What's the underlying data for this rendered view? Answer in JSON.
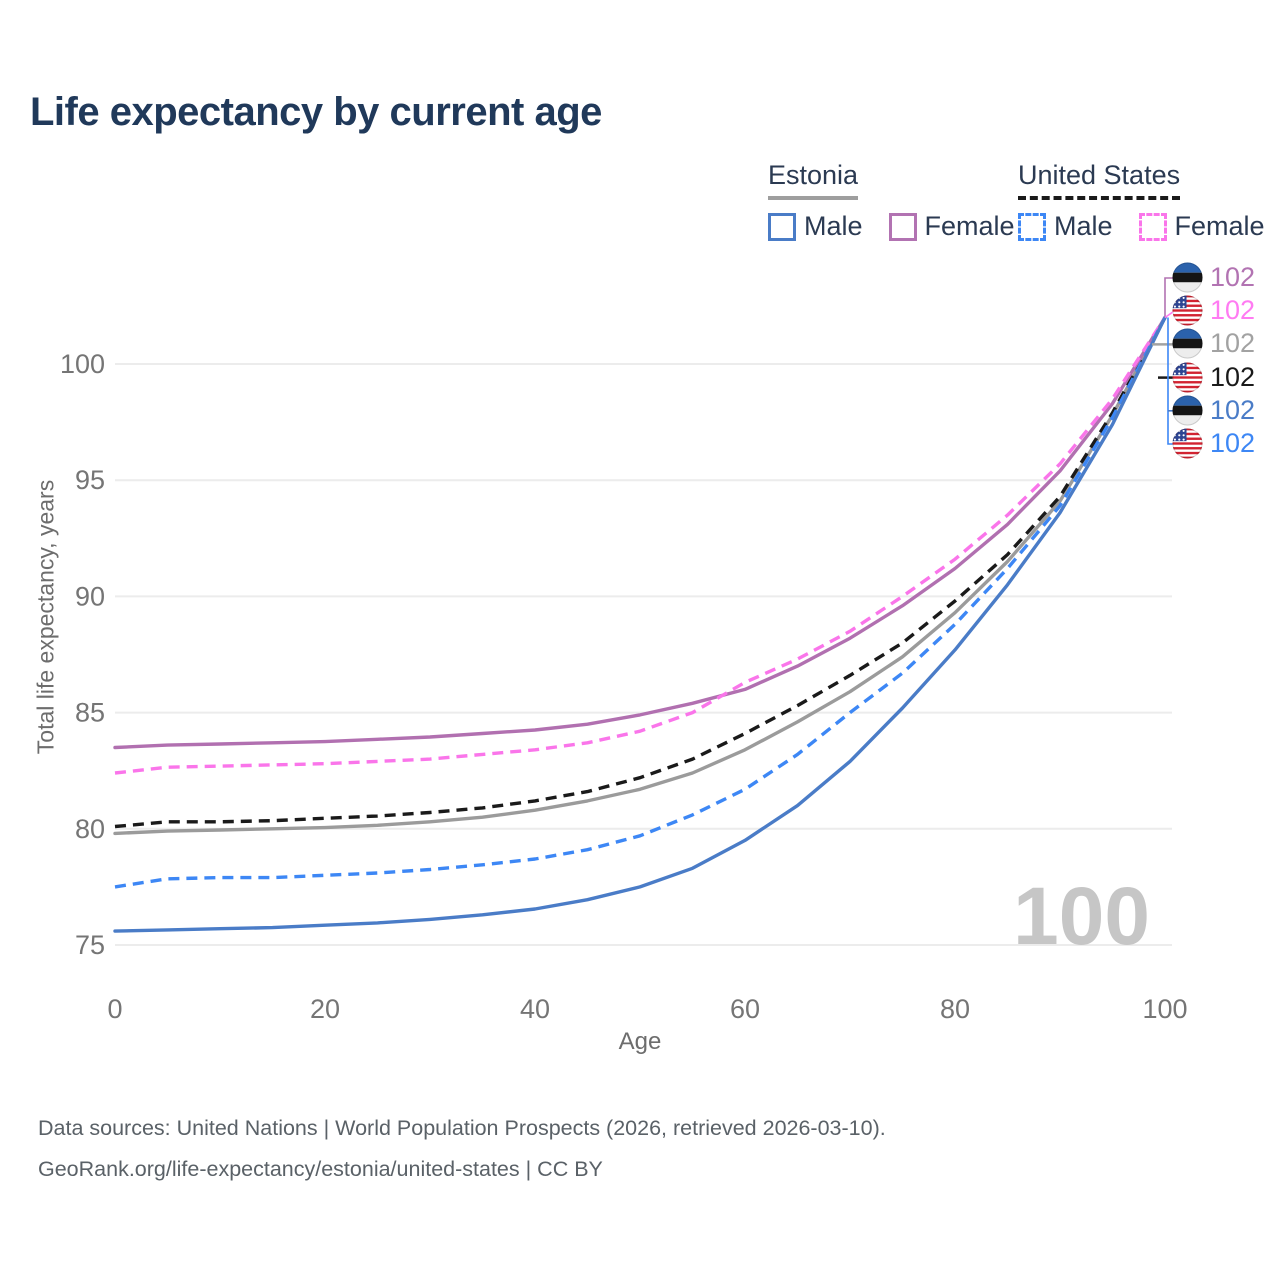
{
  "title": "Life expectancy by current age",
  "legend": {
    "groups": [
      {
        "name": "Estonia",
        "underline_style": "solid",
        "underline_color": "#9e9e9e",
        "items": [
          {
            "label": "Male",
            "color": "#4a7cc7",
            "dashed": false
          },
          {
            "label": "Female",
            "color": "#b273b2",
            "dashed": false
          }
        ]
      },
      {
        "name": "United States",
        "underline_style": "dashed",
        "underline_color": "#1a1a1a",
        "items": [
          {
            "label": "Male",
            "color": "#3d87f5",
            "dashed": true
          },
          {
            "label": "Female",
            "color": "#fa75ea",
            "dashed": true
          }
        ]
      }
    ]
  },
  "chart_data": {
    "type": "line",
    "title": "Life expectancy by current age",
    "xlabel": "Age",
    "ylabel": "Total life expectancy, years",
    "xlim": [
      0,
      100
    ],
    "ylim": [
      73.8,
      103.8
    ],
    "xticks": [
      0,
      20,
      40,
      60,
      80,
      100
    ],
    "yticks": [
      75,
      80,
      85,
      90,
      95,
      100
    ],
    "grid": "horizontal",
    "legend_position": "top-right",
    "x": [
      0,
      5,
      10,
      15,
      20,
      25,
      30,
      35,
      40,
      45,
      50,
      55,
      60,
      65,
      70,
      75,
      80,
      85,
      90,
      95,
      100
    ],
    "series": [
      {
        "name": "Estonia Both sexes",
        "country": "Estonia",
        "sex": "Both",
        "color": "#9b9b9b",
        "dashed": false,
        "values": [
          79.8,
          79.9,
          79.95,
          80.0,
          80.05,
          80.15,
          80.3,
          80.5,
          80.8,
          81.2,
          81.7,
          82.4,
          83.4,
          84.6,
          85.9,
          87.4,
          89.3,
          91.5,
          94.1,
          97.8,
          102
        ]
      },
      {
        "name": "United States Both sexes",
        "country": "United States",
        "sex": "Both",
        "color": "#1a1a1a",
        "dashed": true,
        "values": [
          80.1,
          80.3,
          80.3,
          80.35,
          80.45,
          80.55,
          80.7,
          80.9,
          81.2,
          81.6,
          82.2,
          83.0,
          84.1,
          85.3,
          86.6,
          88.0,
          89.8,
          91.8,
          94.3,
          97.9,
          102
        ]
      },
      {
        "name": "Estonia Female",
        "country": "Estonia",
        "sex": "Female",
        "color": "#b170b0",
        "dashed": false,
        "values": [
          83.5,
          83.6,
          83.65,
          83.7,
          83.75,
          83.85,
          83.95,
          84.1,
          84.25,
          84.5,
          84.9,
          85.4,
          86.0,
          87.0,
          88.2,
          89.6,
          91.2,
          93.1,
          95.4,
          98.3,
          102
        ]
      },
      {
        "name": "United States Female",
        "country": "United States",
        "sex": "Female",
        "color": "#fa75ea",
        "dashed": true,
        "values": [
          82.4,
          82.65,
          82.7,
          82.75,
          82.8,
          82.9,
          83.0,
          83.2,
          83.4,
          83.7,
          84.2,
          85.0,
          86.3,
          87.3,
          88.5,
          90.0,
          91.6,
          93.5,
          95.7,
          98.5,
          102
        ]
      },
      {
        "name": "United States Male",
        "country": "United States",
        "sex": "Male",
        "color": "#3d87f5",
        "dashed": true,
        "values": [
          77.5,
          77.85,
          77.9,
          77.9,
          78.0,
          78.1,
          78.25,
          78.45,
          78.7,
          79.1,
          79.7,
          80.6,
          81.7,
          83.2,
          85.0,
          86.7,
          88.8,
          91.2,
          93.9,
          97.7,
          102
        ]
      },
      {
        "name": "Estonia Male",
        "country": "Estonia",
        "sex": "Male",
        "color": "#4a7cc7",
        "dashed": false,
        "values": [
          75.6,
          75.65,
          75.7,
          75.75,
          75.85,
          75.95,
          76.1,
          76.3,
          76.55,
          76.95,
          77.5,
          78.3,
          79.5,
          81.0,
          82.9,
          85.2,
          87.7,
          90.5,
          93.6,
          97.4,
          102
        ]
      }
    ],
    "end_labels": [
      {
        "flag": "estonia",
        "value": "102",
        "color": "#b273b2",
        "series": "Estonia Female"
      },
      {
        "flag": "us",
        "value": "102",
        "color": "#ff7bf2",
        "series": "United States Female"
      },
      {
        "flag": "estonia",
        "value": "102",
        "color": "#a2a2a2",
        "series": "Estonia Both sexes"
      },
      {
        "flag": "us",
        "value": "102",
        "color": "#1a1a1a",
        "series": "United States Both sexes"
      },
      {
        "flag": "estonia",
        "value": "102",
        "color": "#4a7cc7",
        "series": "Estonia Male"
      },
      {
        "flag": "us",
        "value": "102",
        "color": "#3d87f5",
        "series": "United States Male"
      }
    ],
    "annotation": "100"
  },
  "footer": {
    "line1": "Data sources: United Nations | World Population Prospects (2026, retrieved 2026-03-10).",
    "line2": "GeoRank.org/life-expectancy/estonia/united-states | CC BY"
  }
}
